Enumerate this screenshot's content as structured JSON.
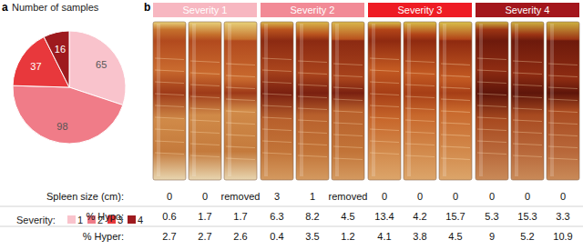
{
  "chart_data": {
    "type": "pie",
    "panel_label": "a",
    "title": "Number of samples",
    "categories": [
      "1",
      "2",
      "3",
      "4"
    ],
    "values": [
      65,
      98,
      37,
      16
    ],
    "colors": [
      "#f9c3cc",
      "#f07c88",
      "#e8383c",
      "#9e1a1e"
    ],
    "legend_title": "Severity:",
    "data_labels": true
  },
  "panel_b": {
    "label": "b",
    "groups": [
      {
        "label": "Severity 1",
        "color": "#f7b7c1"
      },
      {
        "label": "Severity 2",
        "color": "#f28a96"
      },
      {
        "label": "Severity 3",
        "color": "#ee1c24"
      },
      {
        "label": "Severity 4",
        "color": "#a3161c"
      }
    ],
    "table": {
      "rows": [
        {
          "label": "Spleen size (cm):",
          "values": [
            "0",
            "0",
            "removed",
            "3",
            "1",
            "removed",
            "0",
            "0",
            "0",
            "0",
            "0",
            "0"
          ]
        },
        {
          "label": "% Hypo:",
          "values": [
            "0.6",
            "1.7",
            "1.7",
            "6.3",
            "8.2",
            "4.5",
            "13.4",
            "4.2",
            "15.7",
            "5.3",
            "15.3",
            "3.3"
          ]
        },
        {
          "label": "% Hyper:",
          "values": [
            "2.7",
            "2.7",
            "2.6",
            "0.4",
            "3.5",
            "1.2",
            "4.1",
            "3.8",
            "4.5",
            "9",
            "5.2",
            "10.9"
          ]
        }
      ]
    }
  }
}
